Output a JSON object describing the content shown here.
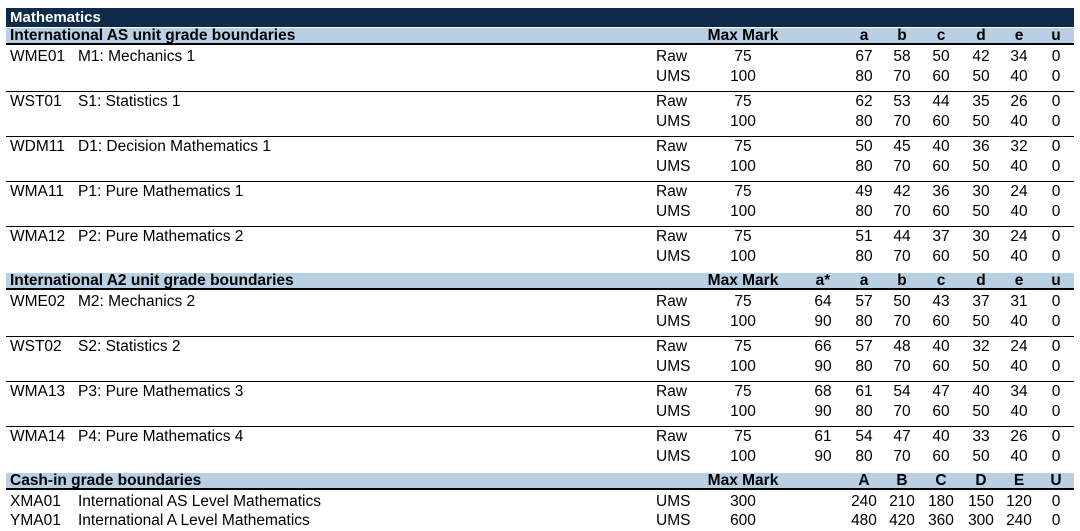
{
  "title": "Mathematics",
  "sections": [
    {
      "heading": "International AS unit grade boundaries",
      "max_mark_label": "Max Mark",
      "grades": [
        "",
        "a",
        "b",
        "c",
        "d",
        "e",
        "u"
      ],
      "units": [
        {
          "code": "WME01",
          "name": "M1: Mechanics 1",
          "raw": {
            "max": "75",
            "g": [
              "",
              "67",
              "58",
              "50",
              "42",
              "34",
              "0"
            ]
          },
          "ums": {
            "max": "100",
            "g": [
              "",
              "80",
              "70",
              "60",
              "50",
              "40",
              "0"
            ]
          }
        },
        {
          "code": "WST01",
          "name": "S1: Statistics 1",
          "raw": {
            "max": "75",
            "g": [
              "",
              "62",
              "53",
              "44",
              "35",
              "26",
              "0"
            ]
          },
          "ums": {
            "max": "100",
            "g": [
              "",
              "80",
              "70",
              "60",
              "50",
              "40",
              "0"
            ]
          }
        },
        {
          "code": "WDM11",
          "name": "D1: Decision Mathematics 1",
          "raw": {
            "max": "75",
            "g": [
              "",
              "50",
              "45",
              "40",
              "36",
              "32",
              "0"
            ]
          },
          "ums": {
            "max": "100",
            "g": [
              "",
              "80",
              "70",
              "60",
              "50",
              "40",
              "0"
            ]
          }
        },
        {
          "code": "WMA11",
          "name": "P1: Pure Mathematics 1",
          "raw": {
            "max": "75",
            "g": [
              "",
              "49",
              "42",
              "36",
              "30",
              "24",
              "0"
            ]
          },
          "ums": {
            "max": "100",
            "g": [
              "",
              "80",
              "70",
              "60",
              "50",
              "40",
              "0"
            ]
          }
        },
        {
          "code": "WMA12",
          "name": "P2: Pure Mathematics 2",
          "raw": {
            "max": "75",
            "g": [
              "",
              "51",
              "44",
              "37",
              "30",
              "24",
              "0"
            ]
          },
          "ums": {
            "max": "100",
            "g": [
              "",
              "80",
              "70",
              "60",
              "50",
              "40",
              "0"
            ]
          }
        }
      ]
    },
    {
      "heading": "International A2 unit grade boundaries",
      "max_mark_label": "Max Mark",
      "grades": [
        "a*",
        "a",
        "b",
        "c",
        "d",
        "e",
        "u"
      ],
      "units": [
        {
          "code": "WME02",
          "name": "M2: Mechanics 2",
          "raw": {
            "max": "75",
            "g": [
              "64",
              "57",
              "50",
              "43",
              "37",
              "31",
              "0"
            ]
          },
          "ums": {
            "max": "100",
            "g": [
              "90",
              "80",
              "70",
              "60",
              "50",
              "40",
              "0"
            ]
          }
        },
        {
          "code": "WST02",
          "name": "S2: Statistics 2",
          "raw": {
            "max": "75",
            "g": [
              "66",
              "57",
              "48",
              "40",
              "32",
              "24",
              "0"
            ]
          },
          "ums": {
            "max": "100",
            "g": [
              "90",
              "80",
              "70",
              "60",
              "50",
              "40",
              "0"
            ]
          }
        },
        {
          "code": "WMA13",
          "name": "P3: Pure Mathematics 3",
          "raw": {
            "max": "75",
            "g": [
              "68",
              "61",
              "54",
              "47",
              "40",
              "34",
              "0"
            ]
          },
          "ums": {
            "max": "100",
            "g": [
              "90",
              "80",
              "70",
              "60",
              "50",
              "40",
              "0"
            ]
          }
        },
        {
          "code": "WMA14",
          "name": "P4: Pure Mathematics 4",
          "raw": {
            "max": "75",
            "g": [
              "61",
              "54",
              "47",
              "40",
              "33",
              "26",
              "0"
            ]
          },
          "ums": {
            "max": "100",
            "g": [
              "90",
              "80",
              "70",
              "60",
              "50",
              "40",
              "0"
            ]
          }
        }
      ]
    }
  ],
  "cashin": {
    "heading": "Cash-in grade boundaries",
    "max_mark_label": "Max Mark",
    "grades": [
      "A",
      "B",
      "C",
      "D",
      "E",
      "U"
    ],
    "rows": [
      {
        "code": "XMA01",
        "name": "International AS Level Mathematics",
        "type": "UMS",
        "max": "300",
        "g": [
          "240",
          "210",
          "180",
          "150",
          "120",
          "0"
        ]
      },
      {
        "code": "YMA01",
        "name": "International A Level Mathematics",
        "type": "UMS",
        "max": "600",
        "g": [
          "480",
          "420",
          "360",
          "300",
          "240",
          "0"
        ]
      }
    ]
  },
  "labels": {
    "raw": "Raw",
    "ums": "UMS"
  }
}
